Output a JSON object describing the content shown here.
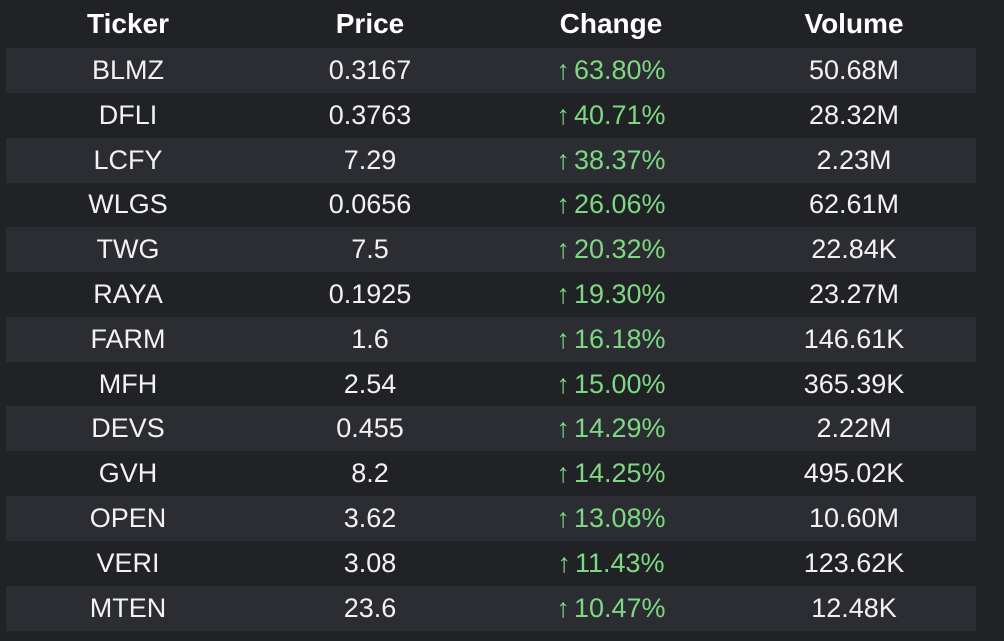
{
  "columns": {
    "ticker": "Ticker",
    "price": "Price",
    "change": "Change",
    "volume": "Volume"
  },
  "colors": {
    "background": "#202226",
    "stripe": "#2b2d32",
    "positive": "#7ed883",
    "text": "#f2f2f2"
  },
  "change_arrow": "↑",
  "rows": [
    {
      "ticker": "BLMZ",
      "price": "0.3167",
      "change": "63.80%",
      "volume": "50.68M"
    },
    {
      "ticker": "DFLI",
      "price": "0.3763",
      "change": "40.71%",
      "volume": "28.32M"
    },
    {
      "ticker": "LCFY",
      "price": "7.29",
      "change": "38.37%",
      "volume": "2.23M"
    },
    {
      "ticker": "WLGS",
      "price": "0.0656",
      "change": "26.06%",
      "volume": "62.61M"
    },
    {
      "ticker": "TWG",
      "price": "7.5",
      "change": "20.32%",
      "volume": "22.84K"
    },
    {
      "ticker": "RAYA",
      "price": "0.1925",
      "change": "19.30%",
      "volume": "23.27M"
    },
    {
      "ticker": "FARM",
      "price": "1.6",
      "change": "16.18%",
      "volume": "146.61K"
    },
    {
      "ticker": "MFH",
      "price": "2.54",
      "change": "15.00%",
      "volume": "365.39K"
    },
    {
      "ticker": "DEVS",
      "price": "0.455",
      "change": "14.29%",
      "volume": "2.22M"
    },
    {
      "ticker": "GVH",
      "price": "8.2",
      "change": "14.25%",
      "volume": "495.02K"
    },
    {
      "ticker": "OPEN",
      "price": "3.62",
      "change": "13.08%",
      "volume": "10.60M"
    },
    {
      "ticker": "VERI",
      "price": "3.08",
      "change": "11.43%",
      "volume": "123.62K"
    },
    {
      "ticker": "MTEN",
      "price": "23.6",
      "change": "10.47%",
      "volume": "12.48K"
    }
  ]
}
